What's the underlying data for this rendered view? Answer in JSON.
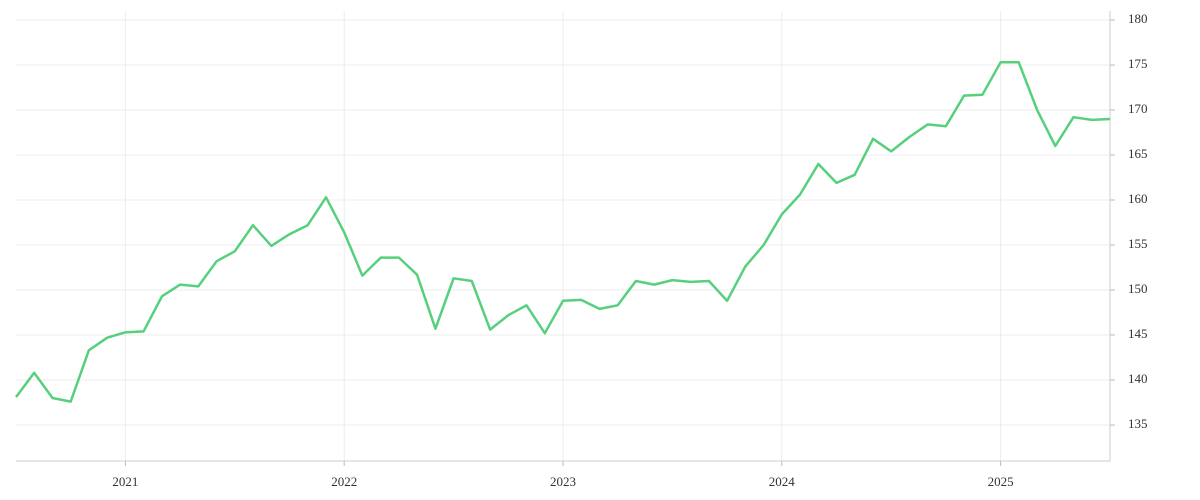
{
  "chart_data": {
    "type": "line",
    "x": [
      2020.5,
      2020.583,
      2020.667,
      2020.75,
      2020.833,
      2020.917,
      2021,
      2021.083,
      2021.167,
      2021.25,
      2021.333,
      2021.417,
      2021.5,
      2021.583,
      2021.667,
      2021.75,
      2021.833,
      2021.917,
      2022,
      2022.083,
      2022.167,
      2022.25,
      2022.333,
      2022.417,
      2022.5,
      2022.583,
      2022.667,
      2022.75,
      2022.833,
      2022.917,
      2023,
      2023.083,
      2023.167,
      2023.25,
      2023.333,
      2023.417,
      2023.5,
      2023.583,
      2023.667,
      2023.75,
      2023.833,
      2023.917,
      2024,
      2024.083,
      2024.167,
      2024.25,
      2024.333,
      2024.417,
      2024.5,
      2024.583,
      2024.667,
      2024.75,
      2024.833,
      2024.917,
      2025,
      2025.083,
      2025.167,
      2025.25,
      2025.333,
      2025.417,
      2025.5
    ],
    "series": [
      {
        "color": "#57d07d",
        "values": [
          138.1,
          140.8,
          138.0,
          137.6,
          143.3,
          144.7,
          145.3,
          145.4,
          149.3,
          150.6,
          150.4,
          153.2,
          154.3,
          157.2,
          154.9,
          156.2,
          157.2,
          160.3,
          156.4,
          151.6,
          153.6,
          153.6,
          151.7,
          145.7,
          151.3,
          151.0,
          145.6,
          147.2,
          148.3,
          145.2,
          148.8,
          148.9,
          147.9,
          148.3,
          151.0,
          150.6,
          151.1,
          150.9,
          151.0,
          148.8,
          152.6,
          155.0,
          158.4,
          160.6,
          164.0,
          161.9,
          162.8,
          166.8,
          165.4,
          167.0,
          168.4,
          168.2,
          171.6,
          171.7,
          175.3,
          175.3,
          170.0,
          166.0,
          169.2,
          168.9,
          169.0
        ]
      }
    ],
    "xlim": [
      2020.5,
      2025.5
    ],
    "xticks": [
      2021,
      2022,
      2023,
      2024,
      2025
    ],
    "ylim": [
      131,
      181
    ],
    "yticks": [
      135,
      140,
      145,
      150,
      155,
      160,
      165,
      170,
      175,
      180
    ],
    "grid": true,
    "y_axis_side": "right"
  }
}
